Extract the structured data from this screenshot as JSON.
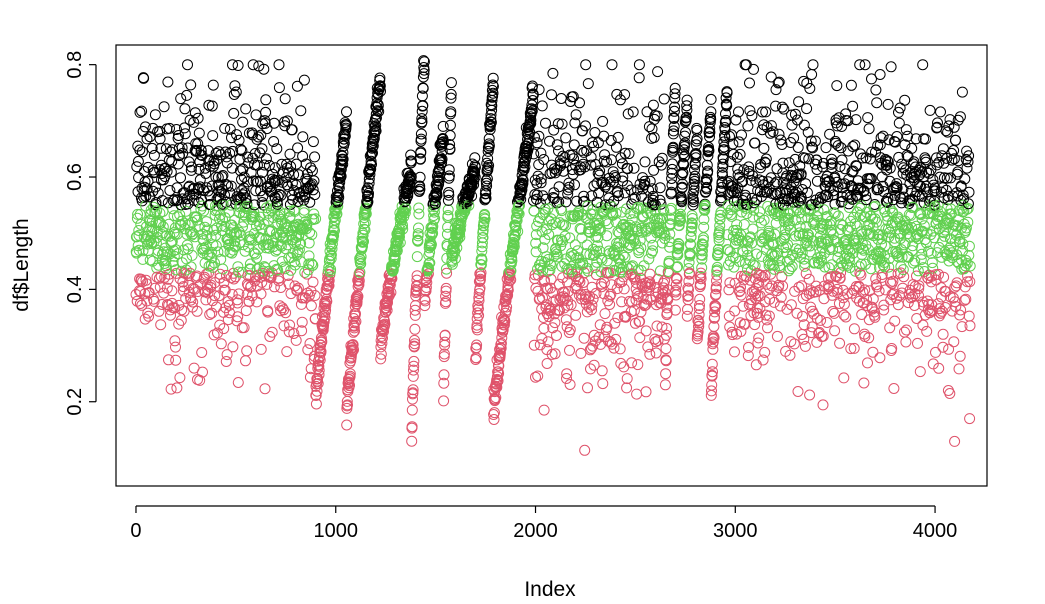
{
  "chart_data": {
    "type": "scatter",
    "title": "",
    "xlabel": "Index",
    "ylabel": "df$Length",
    "xlim": [
      -100,
      4260
    ],
    "ylim": [
      0.05,
      0.835
    ],
    "x_ticks": [
      0,
      1000,
      2000,
      3000,
      4000
    ],
    "x_tick_labels": [
      "0",
      "1000",
      "2000",
      "3000",
      "4000"
    ],
    "y_ticks": [
      0.2,
      0.4,
      0.6,
      0.8
    ],
    "y_tick_labels": [
      "0.2",
      "0.4",
      "0.6",
      "0.8"
    ],
    "n_points": 4177,
    "marker": "open-circle",
    "grid": false,
    "legend": "none",
    "color_rule": [
      {
        "color": "#DF536B",
        "range": "y < 0.43"
      },
      {
        "color": "#61D04F",
        "range": "0.43 <= y < 0.55"
      },
      {
        "color": "#000000",
        "range": "y >= 0.55"
      }
    ],
    "segments": [
      {
        "type": "noise",
        "x": [
          0,
          900
        ],
        "mean": 0.51,
        "sd": 0.11,
        "n": 900
      },
      {
        "type": "sorted",
        "x": [
          900,
          1055
        ],
        "y": [
          0.2,
          0.7
        ],
        "n": 155
      },
      {
        "type": "sorted",
        "x": [
          1055,
          1225
        ],
        "y": [
          0.18,
          0.78
        ],
        "n": 170
      },
      {
        "type": "sorted",
        "x": [
          1225,
          1380
        ],
        "y": [
          0.3,
          0.62
        ],
        "n": 155
      },
      {
        "type": "sorted",
        "x": [
          1380,
          1445
        ],
        "y": [
          0.14,
          0.82
        ],
        "n": 65
      },
      {
        "type": "sorted",
        "x": [
          1445,
          1540
        ],
        "y": [
          0.38,
          0.67
        ],
        "n": 95
      },
      {
        "type": "sorted",
        "x": [
          1540,
          1580
        ],
        "y": [
          0.21,
          0.75
        ],
        "n": 40
      },
      {
        "type": "sorted",
        "x": [
          1580,
          1700
        ],
        "y": [
          0.45,
          0.62
        ],
        "n": 120
      },
      {
        "type": "sorted",
        "x": [
          1700,
          1790
        ],
        "y": [
          0.27,
          0.77
        ],
        "n": 90
      },
      {
        "type": "sorted",
        "x": [
          1790,
          1990
        ],
        "y": [
          0.18,
          0.74
        ],
        "n": 200
      },
      {
        "type": "noise",
        "x": [
          1990,
          2650
        ],
        "mean": 0.49,
        "sd": 0.12,
        "n": 660
      },
      {
        "type": "sorted",
        "x": [
          2650,
          2700
        ],
        "y": [
          0.25,
          0.75
        ],
        "n": 50
      },
      {
        "type": "sorted",
        "x": [
          2700,
          2760
        ],
        "y": [
          0.38,
          0.73
        ],
        "n": 60
      },
      {
        "type": "sorted",
        "x": [
          2760,
          2810
        ],
        "y": [
          0.35,
          0.68
        ],
        "n": 50
      },
      {
        "type": "sorted",
        "x": [
          2810,
          2880
        ],
        "y": [
          0.3,
          0.72
        ],
        "n": 70
      },
      {
        "type": "sorted",
        "x": [
          2880,
          2960
        ],
        "y": [
          0.22,
          0.75
        ],
        "n": 80
      },
      {
        "type": "noise",
        "x": [
          2960,
          4177
        ],
        "mean": 0.51,
        "sd": 0.11,
        "n": 1217
      }
    ]
  }
}
